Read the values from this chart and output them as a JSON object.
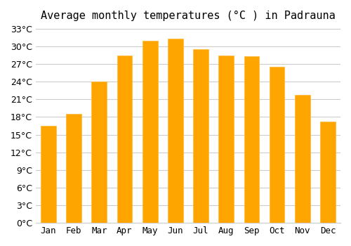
{
  "title": "Average monthly temperatures (°C ) in Padrauna",
  "months": [
    "Jan",
    "Feb",
    "Mar",
    "Apr",
    "May",
    "Jun",
    "Jul",
    "Aug",
    "Sep",
    "Oct",
    "Nov",
    "Dec"
  ],
  "temperatures": [
    16.5,
    18.5,
    24.0,
    28.5,
    31.0,
    31.3,
    29.5,
    28.5,
    28.3,
    26.5,
    21.7,
    17.2
  ],
  "bar_color": "#FFA500",
  "bar_edge_color": "#FFB733",
  "background_color": "#FFFFFF",
  "grid_color": "#CCCCCC",
  "title_fontsize": 11,
  "tick_fontsize": 9,
  "ylim": [
    0,
    33
  ],
  "yticks": [
    0,
    3,
    6,
    9,
    12,
    15,
    18,
    21,
    24,
    27,
    30,
    33
  ]
}
